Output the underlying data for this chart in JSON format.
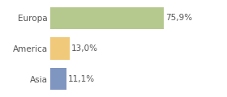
{
  "categories": [
    "Europa",
    "America",
    "Asia"
  ],
  "values": [
    75.9,
    13.0,
    11.1
  ],
  "bar_colors": [
    "#b5c98e",
    "#f0c97a",
    "#7f96c0"
  ],
  "labels": [
    "75,9%",
    "13,0%",
    "11,1%"
  ],
  "background_color": "#ffffff",
  "xlim": [
    0,
    100
  ],
  "label_fontsize": 7.5,
  "tick_fontsize": 7.5,
  "bar_height": 0.72
}
